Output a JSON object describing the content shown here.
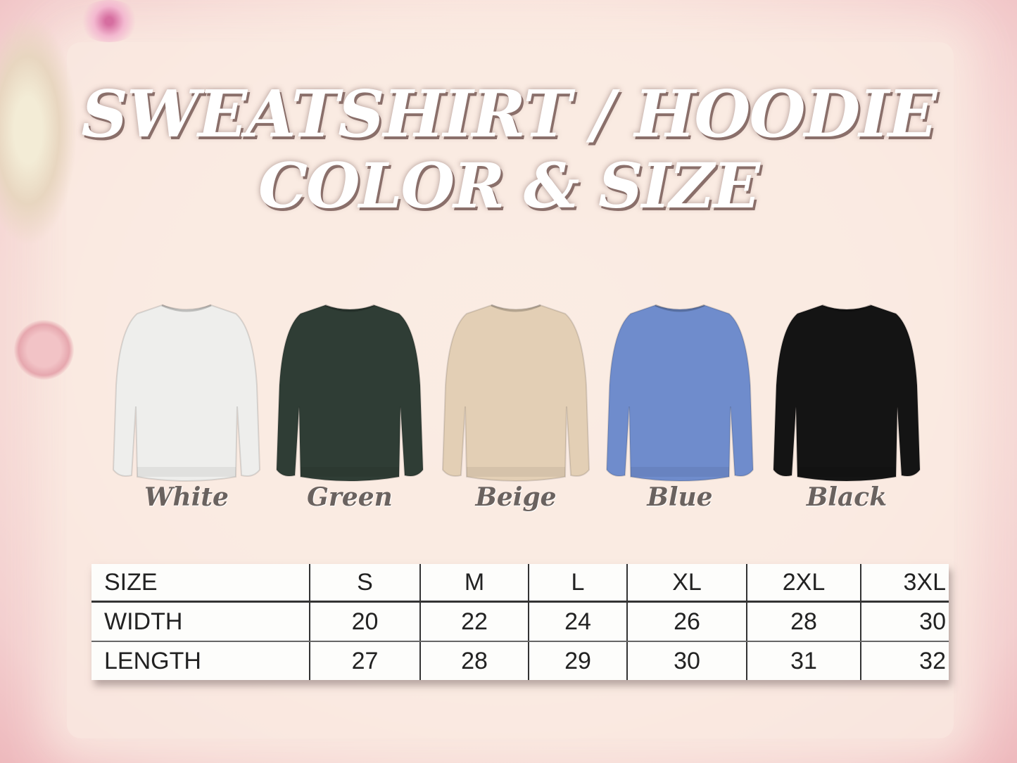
{
  "title": {
    "line1": "SWEATSHIRT / HOODIE",
    "line2": "COLOR & SIZE"
  },
  "colors": [
    {
      "label": "White",
      "hex": "#eeeeec"
    },
    {
      "label": "Green",
      "hex": "#2f3d35"
    },
    {
      "label": "Beige",
      "hex": "#e3cfb5"
    },
    {
      "label": "Blue",
      "hex": "#6f8ccc"
    },
    {
      "label": "Black",
      "hex": "#141414"
    }
  ],
  "size_table": {
    "headers": [
      "SIZE",
      "S",
      "M",
      "L",
      "XL",
      "2XL",
      "3XL"
    ],
    "rows": [
      [
        "WIDTH",
        "20",
        "22",
        "24",
        "26",
        "28",
        "30"
      ],
      [
        "LENGTH",
        "27",
        "28",
        "29",
        "30",
        "31",
        "32"
      ]
    ]
  }
}
